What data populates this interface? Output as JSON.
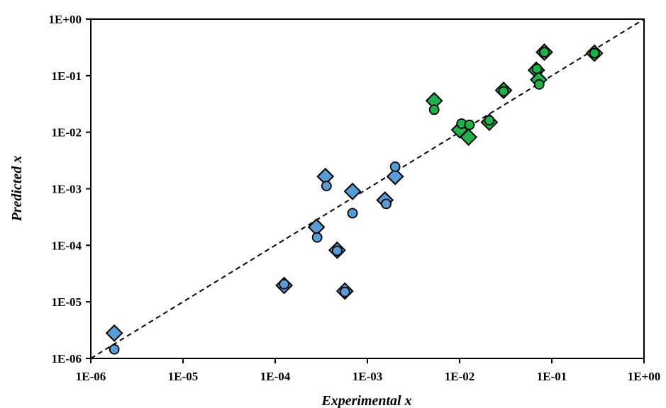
{
  "chart_data": {
    "type": "scatter",
    "title": "",
    "xlabel": "Experimental x",
    "ylabel": "Predicted x",
    "xscale": "log",
    "yscale": "log",
    "xlim": [
      1e-06,
      1
    ],
    "ylim": [
      1e-06,
      1
    ],
    "x_tick_labels": [
      "1E-06",
      "1E-05",
      "1E-04",
      "1E-03",
      "1E-02",
      "1E-01",
      "1E+00"
    ],
    "y_tick_labels": [
      "1E-06",
      "1E-05",
      "1E-04",
      "1E-03",
      "1E-02",
      "1E-01",
      "1E+00"
    ],
    "grid": false,
    "legend": "none",
    "reference_line": {
      "style": "dashed",
      "description": "y = x",
      "color": "#000000"
    },
    "series": [
      {
        "marker": "diamond",
        "color": "#5b9bd5",
        "points": [
          [
            1.8e-06,
            2.8e-06
          ],
          [
            0.000125,
            1.95e-05
          ],
          [
            0.00028,
            0.00021
          ],
          [
            0.00035,
            0.00165
          ],
          [
            0.00047,
            8.2e-05
          ],
          [
            0.00057,
            1.55e-05
          ],
          [
            0.00069,
            0.0009
          ],
          [
            0.00155,
            0.00063
          ],
          [
            0.002,
            0.00165
          ]
        ]
      },
      {
        "marker": "circle",
        "color": "#5b9bd5",
        "points": [
          [
            1.8e-06,
            1.45e-06
          ],
          [
            0.000125,
            2.05e-05
          ],
          [
            0.000285,
            0.000138
          ],
          [
            0.00036,
            0.00112
          ],
          [
            0.00047,
            8e-05
          ],
          [
            0.00057,
            1.5e-05
          ],
          [
            0.00069,
            0.00037
          ],
          [
            0.0016,
            0.00054
          ],
          [
            0.002,
            0.00245
          ]
        ]
      },
      {
        "marker": "diamond",
        "color": "#22b04b",
        "points": [
          [
            0.0053,
            0.036
          ],
          [
            0.01,
            0.011
          ],
          [
            0.0125,
            0.0082
          ],
          [
            0.021,
            0.015
          ],
          [
            0.03,
            0.055
          ],
          [
            0.068,
            0.125
          ],
          [
            0.072,
            0.085
          ],
          [
            0.083,
            0.26
          ],
          [
            0.29,
            0.25
          ]
        ]
      },
      {
        "marker": "circle",
        "color": "#22b04b",
        "points": [
          [
            0.0053,
            0.025
          ],
          [
            0.0105,
            0.0142
          ],
          [
            0.0128,
            0.0135
          ],
          [
            0.021,
            0.0162
          ],
          [
            0.03,
            0.053
          ],
          [
            0.069,
            0.132
          ],
          [
            0.073,
            0.07
          ],
          [
            0.083,
            0.26
          ],
          [
            0.29,
            0.25
          ]
        ]
      }
    ]
  }
}
